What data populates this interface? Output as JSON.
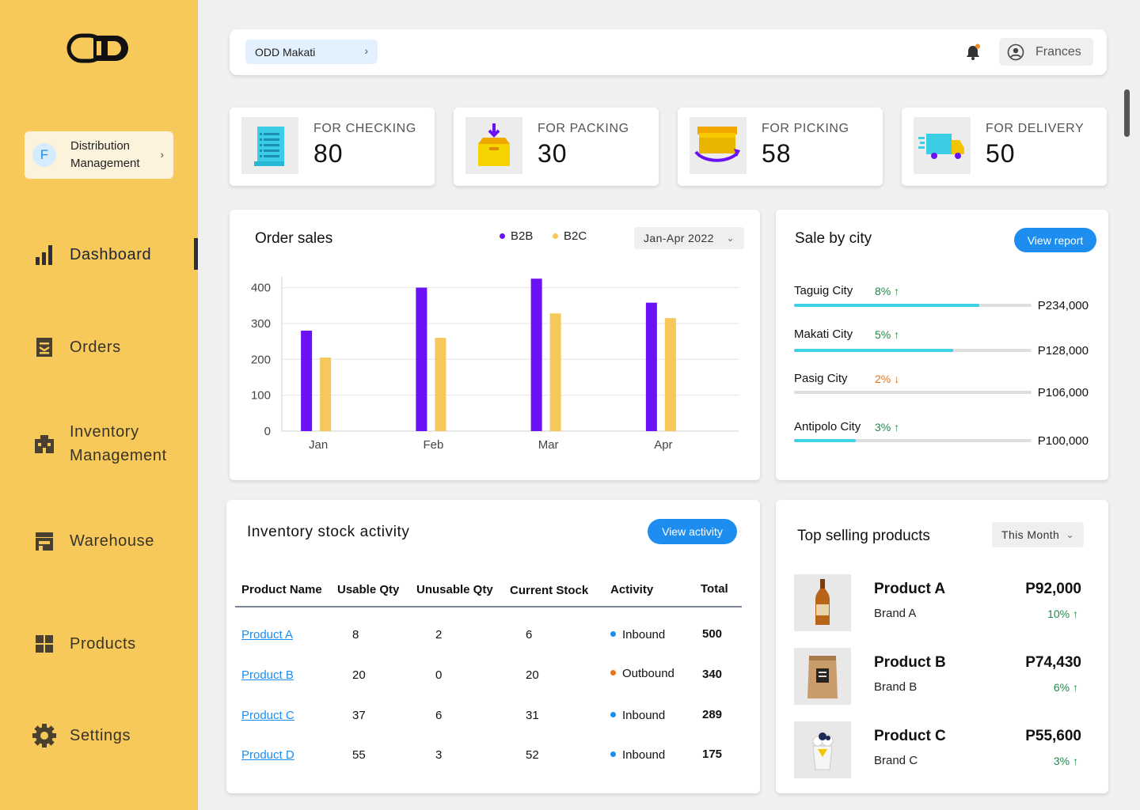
{
  "brand": {
    "logo_text": "ODD"
  },
  "org": {
    "initial": "F",
    "label": "Distribution Management"
  },
  "nav": [
    {
      "key": "dashboard",
      "label": "Dashboard",
      "active": true,
      "icon": "bar-chart-icon"
    },
    {
      "key": "orders",
      "label": "Orders",
      "active": false,
      "icon": "clipboard-icon"
    },
    {
      "key": "inventory",
      "label": "Inventory Management",
      "active": false,
      "icon": "building-icon"
    },
    {
      "key": "warehouse",
      "label": "Warehouse",
      "active": false,
      "icon": "store-icon"
    },
    {
      "key": "products",
      "label": "Products",
      "active": false,
      "icon": "grid-icon"
    },
    {
      "key": "settings",
      "label": "Settings",
      "active": false,
      "icon": "gear-icon"
    }
  ],
  "topbar": {
    "location": "ODD Makati",
    "user": "Frances"
  },
  "stats": [
    {
      "label": "FOR CHECKING",
      "value": "80",
      "icon": "receipt-icon"
    },
    {
      "label": "FOR PACKING",
      "value": "30",
      "icon": "box-icon"
    },
    {
      "label": "FOR PICKING",
      "value": "58",
      "icon": "pickup-box-icon"
    },
    {
      "label": "FOR DELIVERY",
      "value": "50",
      "icon": "truck-icon"
    }
  ],
  "order_sales": {
    "title": "Order sales",
    "range": "Jan-Apr 2022"
  },
  "chart_data": {
    "type": "bar",
    "title": "Order sales",
    "categories": [
      "Jan",
      "Feb",
      "Mar",
      "Apr"
    ],
    "series": [
      {
        "name": "B2B",
        "color": "#6a12f5",
        "values": [
          280,
          400,
          425,
          358
        ]
      },
      {
        "name": "B2C",
        "color": "#f6c85b",
        "values": [
          205,
          260,
          328,
          315
        ]
      }
    ],
    "yticks": [
      0,
      100,
      200,
      300,
      400
    ],
    "ytick_labels": [
      "0",
      "100",
      "200",
      "300",
      "400"
    ],
    "ylim": [
      0,
      430
    ],
    "grid": true,
    "legend": "top"
  },
  "sale_by_city": {
    "title": "Sale by city",
    "button": "View report",
    "cities": [
      {
        "name": "Taguig City",
        "pct": "8%",
        "trend": "up",
        "amount": "P234,000",
        "share": 0.78
      },
      {
        "name": "Makati City",
        "pct": "5%",
        "trend": "up",
        "amount": "P128,000",
        "share": 0.67
      },
      {
        "name": "Pasig City",
        "pct": "2%",
        "trend": "down",
        "amount": "P106,000",
        "share": 0.0
      },
      {
        "name": "Antipolo City",
        "pct": "3%",
        "trend": "up",
        "amount": "P100,000",
        "share": 0.26
      }
    ]
  },
  "stock_activity": {
    "title": "Inventory stock activity",
    "button": "View activity",
    "columns": [
      "Product Name",
      "Usable Qty",
      "Unusable Qty",
      "Current Stock",
      "Activity",
      "Total"
    ],
    "rows": [
      {
        "name": "Product A",
        "usable": "8",
        "unusable": "2",
        "current": "6",
        "activity": "Inbound",
        "activity_color": "#1d8ef0",
        "total": "500"
      },
      {
        "name": "Product B",
        "usable": "20",
        "unusable": "0",
        "current": "20",
        "activity": "Outbound",
        "activity_color": "#e3761c",
        "total": "340"
      },
      {
        "name": "Product C",
        "usable": "37",
        "unusable": "6",
        "current": "31",
        "activity": "Inbound",
        "activity_color": "#1d8ef0",
        "total": "289"
      },
      {
        "name": "Product D",
        "usable": "55",
        "unusable": "3",
        "current": "52",
        "activity": "Inbound",
        "activity_color": "#1d8ef0",
        "total": "175"
      }
    ]
  },
  "top_products": {
    "title": "Top selling products",
    "period": "This Month",
    "items": [
      {
        "name": "Product A",
        "brand": "Brand A",
        "price": "P92,000",
        "pct": "10%",
        "image": "beer-bottle"
      },
      {
        "name": "Product B",
        "brand": "Brand B",
        "price": "P74,430",
        "pct": "6%",
        "image": "coffee-bag"
      },
      {
        "name": "Product C",
        "brand": "Brand C",
        "price": "P55,600",
        "pct": "3%",
        "image": "dessert-cup"
      }
    ]
  }
}
